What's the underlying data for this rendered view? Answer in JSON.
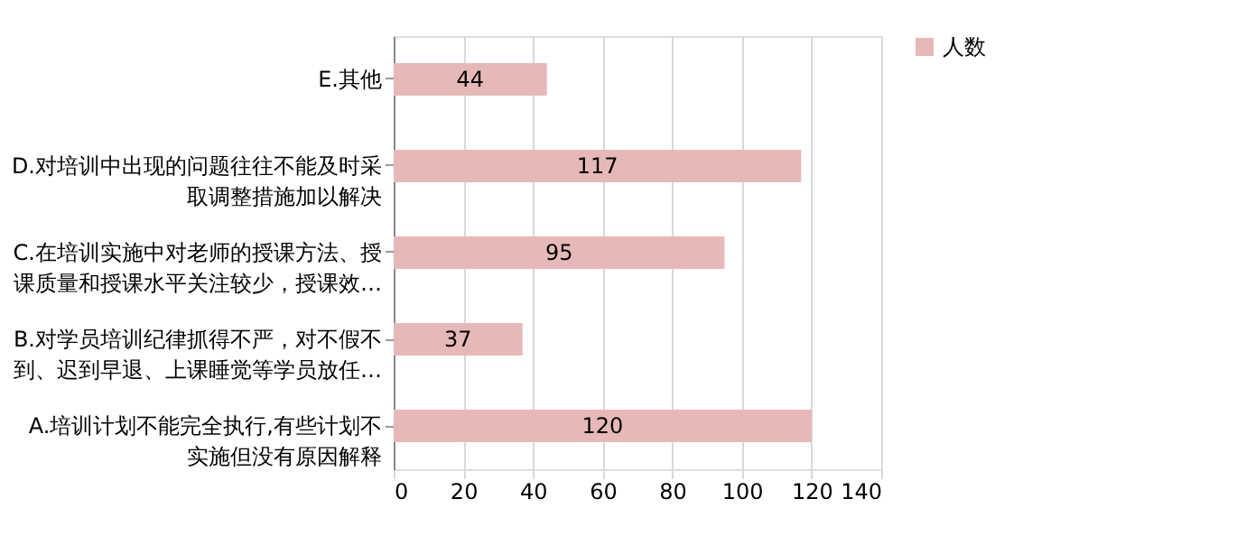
{
  "chart_data": {
    "type": "bar",
    "orientation": "horizontal",
    "categories": [
      "E.其他",
      "D.对培训中出现的问题往往不能及时采取调整措施加以解决",
      "C.在培训实施中对老师的授课方法、授课质量和授课水平关注较少，授课效…",
      "B.对学员培训纪律抓得不严，对不假不到、迟到早退、上课睡觉等学员放任…",
      "A.培训计划不能完全执行,有些计划不实施但没有原因解释"
    ],
    "series": [
      {
        "name": "人数",
        "color": "#e6b9b8",
        "values": [
          44,
          117,
          95,
          37,
          120
        ]
      }
    ],
    "xlim": [
      0,
      140
    ],
    "xticks": [
      0,
      20,
      40,
      60,
      80,
      100,
      120,
      140
    ],
    "grid": "x",
    "legend": "right",
    "data_labels": true
  }
}
